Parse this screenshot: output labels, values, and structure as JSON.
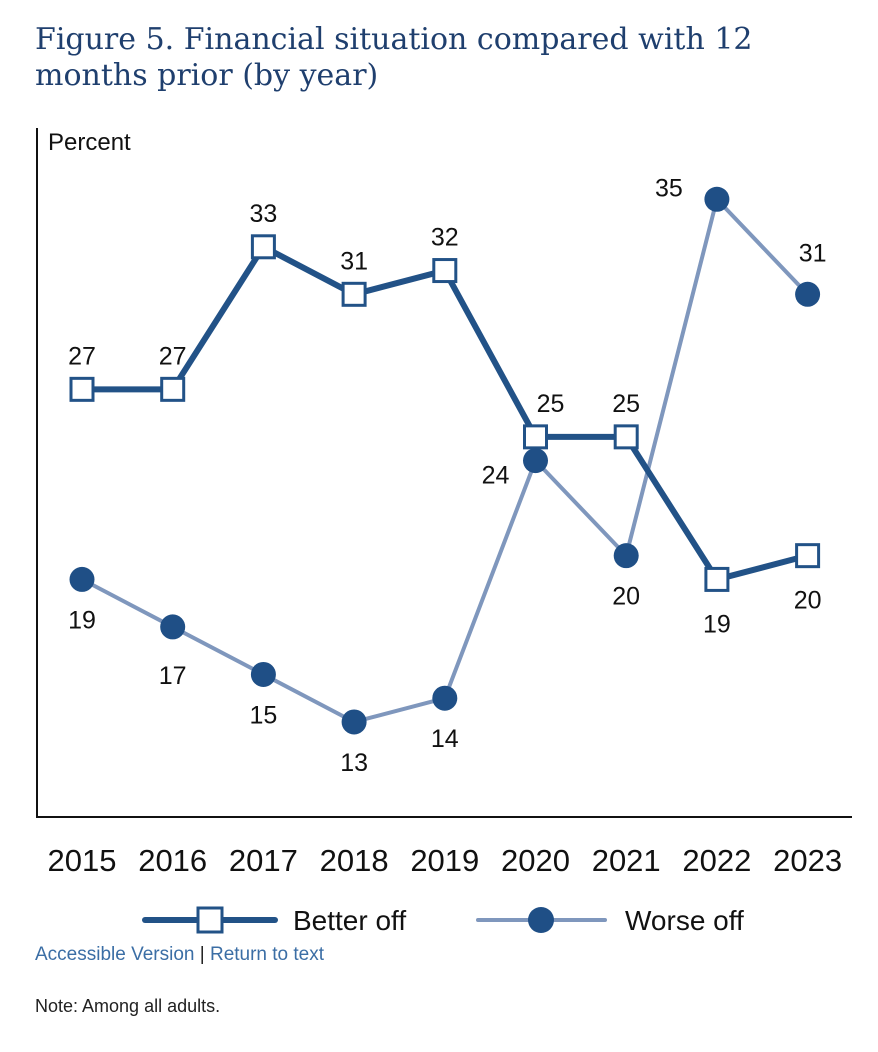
{
  "title": "Figure 5. Financial situation compared with 12 months prior (by year)",
  "chart_data": {
    "type": "line",
    "ylabel": "Percent",
    "ylim": [
      9,
      38
    ],
    "grid": false,
    "legend_position": "bottom",
    "categories": [
      "2015",
      "2016",
      "2017",
      "2018",
      "2019",
      "2020",
      "2021",
      "2022",
      "2023"
    ],
    "series": [
      {
        "name": "Better off",
        "values": [
          27,
          27,
          33,
          31,
          32,
          25,
          25,
          19,
          20
        ],
        "color": "#225287",
        "marker": "square",
        "label_offsets": [
          [
            0,
            -34
          ],
          [
            0,
            -34
          ],
          [
            0,
            -34
          ],
          [
            0,
            -34
          ],
          [
            0,
            -34
          ],
          [
            15,
            -34
          ],
          [
            0,
            -34
          ],
          [
            0,
            44
          ],
          [
            0,
            44
          ]
        ]
      },
      {
        "name": "Worse off",
        "values": [
          19,
          17,
          15,
          13,
          14,
          24,
          20,
          35,
          31
        ],
        "color": "#7f97bd",
        "marker_color": "#1f4f86",
        "marker": "circle",
        "label_offsets": [
          [
            0,
            40
          ],
          [
            0,
            48
          ],
          [
            0,
            40
          ],
          [
            0,
            40
          ],
          [
            0,
            40
          ],
          [
            -40,
            14
          ],
          [
            0,
            40
          ],
          [
            -48,
            -12
          ],
          [
            5,
            -42
          ]
        ]
      }
    ]
  },
  "links": {
    "accessible": "Accessible Version",
    "separator": "|",
    "return": "Return to text"
  },
  "note": "Note: Among all adults."
}
